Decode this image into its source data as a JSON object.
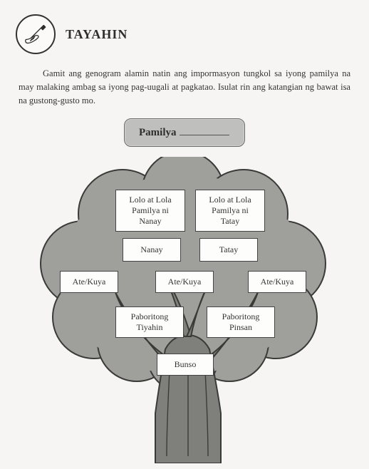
{
  "header": {
    "title": "TAYAHIN"
  },
  "instructions": "Gamit ang genogram alamin natin ang impormasyon tungkol sa iyong pamilya na may malaking ambag sa iyong pag-uugali at pagkatao. Isulat rin ang katangian ng bawat isa na gustong-gusto mo.",
  "pamilya": {
    "label": "Pamilya"
  },
  "tree": {
    "foliage_fill": "#9f9f9b",
    "foliage_stroke": "#3a3a38",
    "trunk_fill": "#7f7f7b",
    "trunk_stroke": "#3a3a38",
    "node_bg": "#fdfdfc",
    "node_border": "#454545",
    "nodes": {
      "lolo_nanay": "Lolo at Lola\nPamilya ni\nNanay",
      "lolo_tatay": "Lolo at Lola\nPamilya ni\nTatay",
      "nanay": "Nanay",
      "tatay": "Tatay",
      "ate1": "Ate/Kuya",
      "ate2": "Ate/Kuya",
      "ate3": "Ate/Kuya",
      "tiyahin": "Paboritong\nTiyahin",
      "pinsan": "Paboritong\nPinsan",
      "bunso": "Bunso"
    }
  }
}
